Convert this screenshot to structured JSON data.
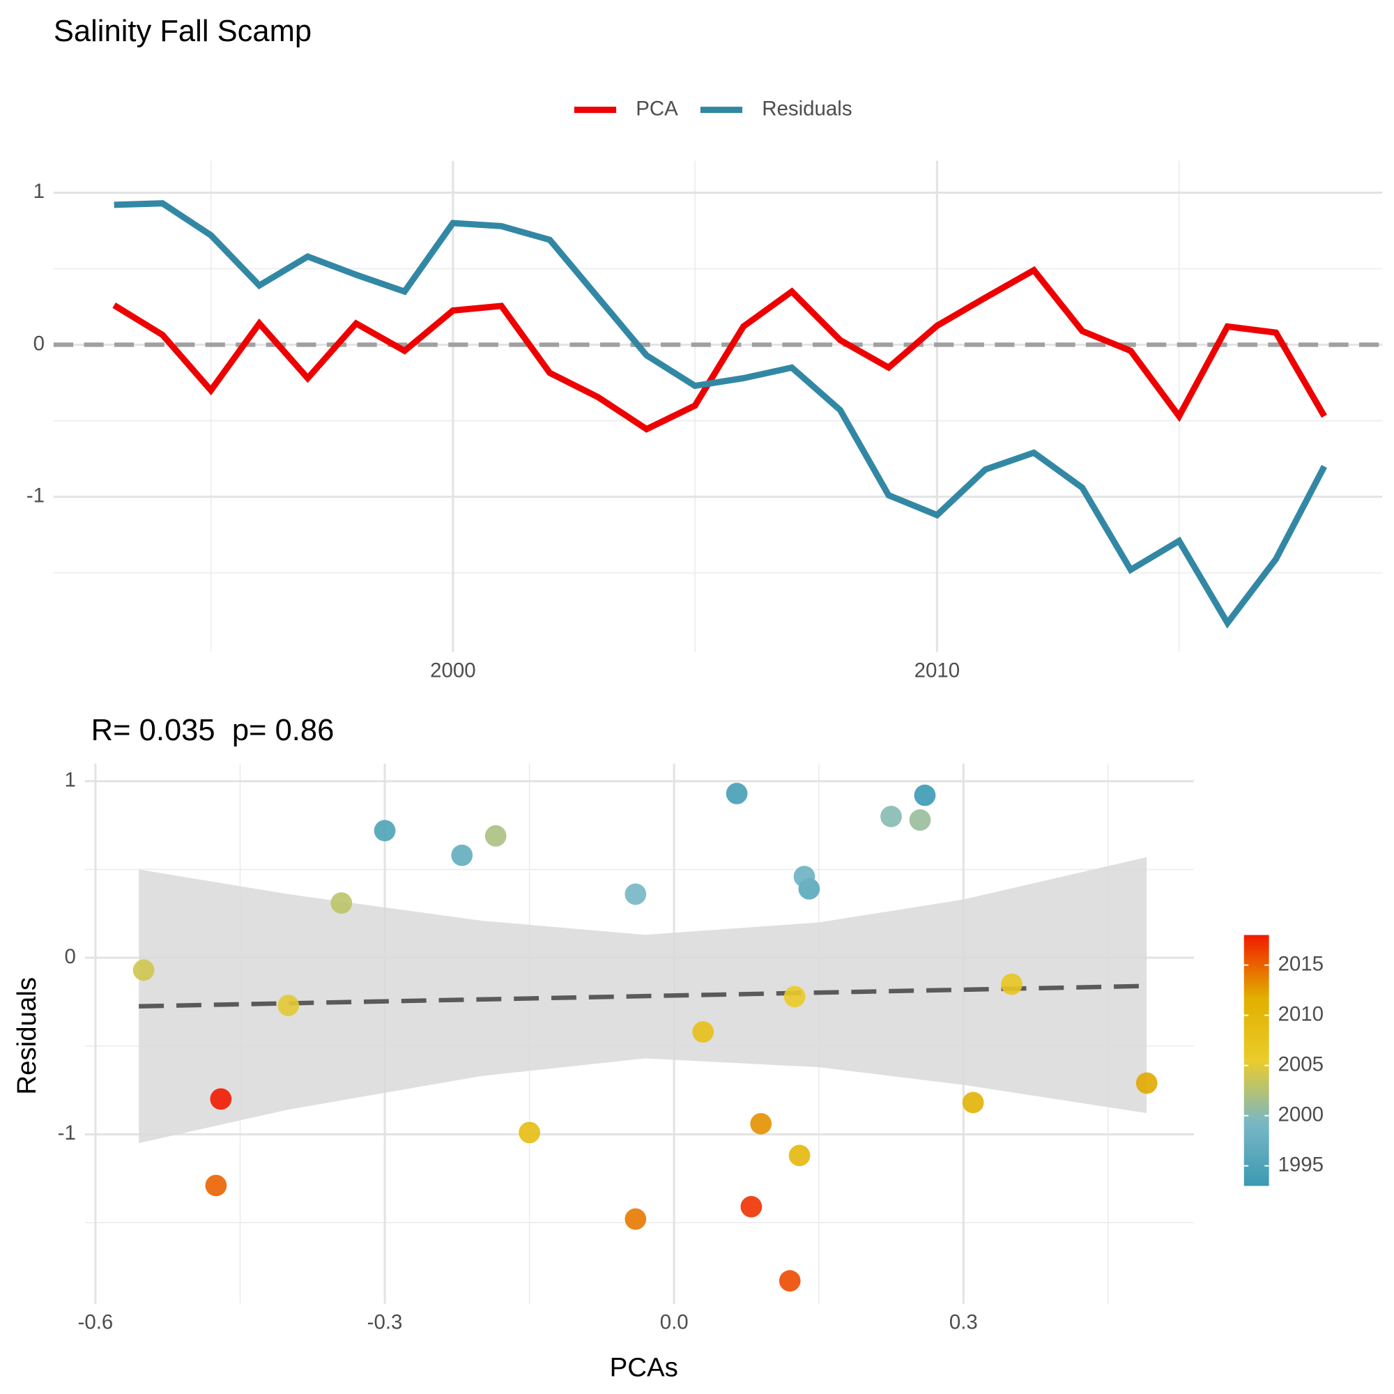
{
  "chart_data": [
    {
      "type": "line",
      "title": "Salinity Fall Scamp",
      "x": [
        1993,
        1994,
        1995,
        1996,
        1997,
        1998,
        1999,
        2000,
        2001,
        2002,
        2003,
        2004,
        2005,
        2006,
        2007,
        2008,
        2009,
        2010,
        2011,
        2012,
        2013,
        2014,
        2015,
        2016,
        2017,
        2018
      ],
      "series": [
        {
          "name": "PCA",
          "color": "#ee0000",
          "values": [
            0.26,
            0.065,
            -0.3,
            0.14,
            -0.22,
            0.14,
            -0.04,
            0.225,
            0.255,
            -0.185,
            -0.345,
            -0.555,
            -0.4,
            0.12,
            0.35,
            0.03,
            -0.15,
            0.125,
            0.31,
            0.49,
            0.09,
            -0.04,
            -0.47,
            0.12,
            0.08,
            -0.47
          ]
        },
        {
          "name": "Residuals",
          "color": "#3288a4",
          "values": [
            0.92,
            0.93,
            0.72,
            0.39,
            0.58,
            0.46,
            0.35,
            0.8,
            0.78,
            0.69,
            0.31,
            -0.07,
            -0.27,
            -0.22,
            -0.15,
            -0.43,
            -0.99,
            -1.12,
            -0.82,
            -0.71,
            -0.94,
            -1.48,
            -1.29,
            -1.83,
            -1.41,
            -0.8
          ]
        }
      ],
      "xlim": [
        1991.75,
        2019.2
      ],
      "xticks": [
        2000,
        2010
      ],
      "xminor": [
        1995,
        2005,
        2015
      ],
      "ylim": [
        -2.02,
        1.21
      ],
      "yticks": [
        1,
        0,
        -1
      ],
      "yminor": [
        0.5,
        -0.5,
        -1.5
      ],
      "hline": 0,
      "legend": "top",
      "grid": true
    },
    {
      "type": "scatter",
      "subtitle": "R= 0.035  p= 0.86",
      "xlabel": "PCAs",
      "ylabel": "Residuals",
      "x": [
        0.26,
        0.065,
        -0.3,
        0.14,
        -0.22,
        0.135,
        -0.04,
        0.225,
        0.255,
        -0.185,
        -0.345,
        -0.55,
        -0.4,
        0.125,
        0.35,
        0.03,
        -0.15,
        0.13,
        0.31,
        0.49,
        0.09,
        -0.04,
        -0.475,
        0.12,
        0.08,
        -0.47
      ],
      "y": [
        0.92,
        0.93,
        0.72,
        0.39,
        0.58,
        0.46,
        0.36,
        0.8,
        0.78,
        0.69,
        0.31,
        -0.07,
        -0.27,
        -0.22,
        -0.15,
        -0.42,
        -0.99,
        -1.12,
        -0.82,
        -0.71,
        -0.94,
        -1.48,
        -1.29,
        -1.83,
        -1.41,
        -0.8
      ],
      "color_values": [
        1993,
        1994,
        1995,
        1996,
        1997,
        1998,
        1999,
        2000,
        2001,
        2002,
        2003,
        2004,
        2005,
        2006,
        2007,
        2008,
        2009,
        2010,
        2011,
        2012,
        2013,
        2014,
        2015,
        2016,
        2017,
        2018
      ],
      "fit": {
        "x": [
          -0.555,
          0.49
        ],
        "y": [
          -0.275,
          -0.16
        ]
      },
      "ribbon": {
        "x": [
          -0.555,
          -0.4,
          -0.2,
          -0.03,
          0.15,
          0.3,
          0.49
        ],
        "upper": [
          0.5,
          0.36,
          0.21,
          0.13,
          0.2,
          0.33,
          0.57
        ],
        "lower": [
          -1.05,
          -0.86,
          -0.67,
          -0.57,
          -0.62,
          -0.72,
          -0.88
        ]
      },
      "xlim": [
        -0.611,
        0.539
      ],
      "xticks": [
        -0.6,
        -0.3,
        {
          "value": 0,
          "label": "0.0"
        },
        0.3
      ],
      "xminor": [
        -0.45,
        -0.15,
        0.15,
        0.45
      ],
      "ylim": [
        -1.96,
        1.1
      ],
      "yticks": [
        1,
        0,
        -1
      ],
      "yminor": [
        0.5,
        -0.5,
        -1.5
      ],
      "grid": true,
      "colorbar": {
        "lim": [
          1993,
          2018
        ],
        "ticks": [
          2015,
          2010,
          2005,
          2000,
          1995
        ],
        "palette": [
          "#3B9AB2",
          "#78B7C5",
          "#EBCC2A",
          "#E1AF00",
          "#F21A00"
        ]
      }
    }
  ]
}
